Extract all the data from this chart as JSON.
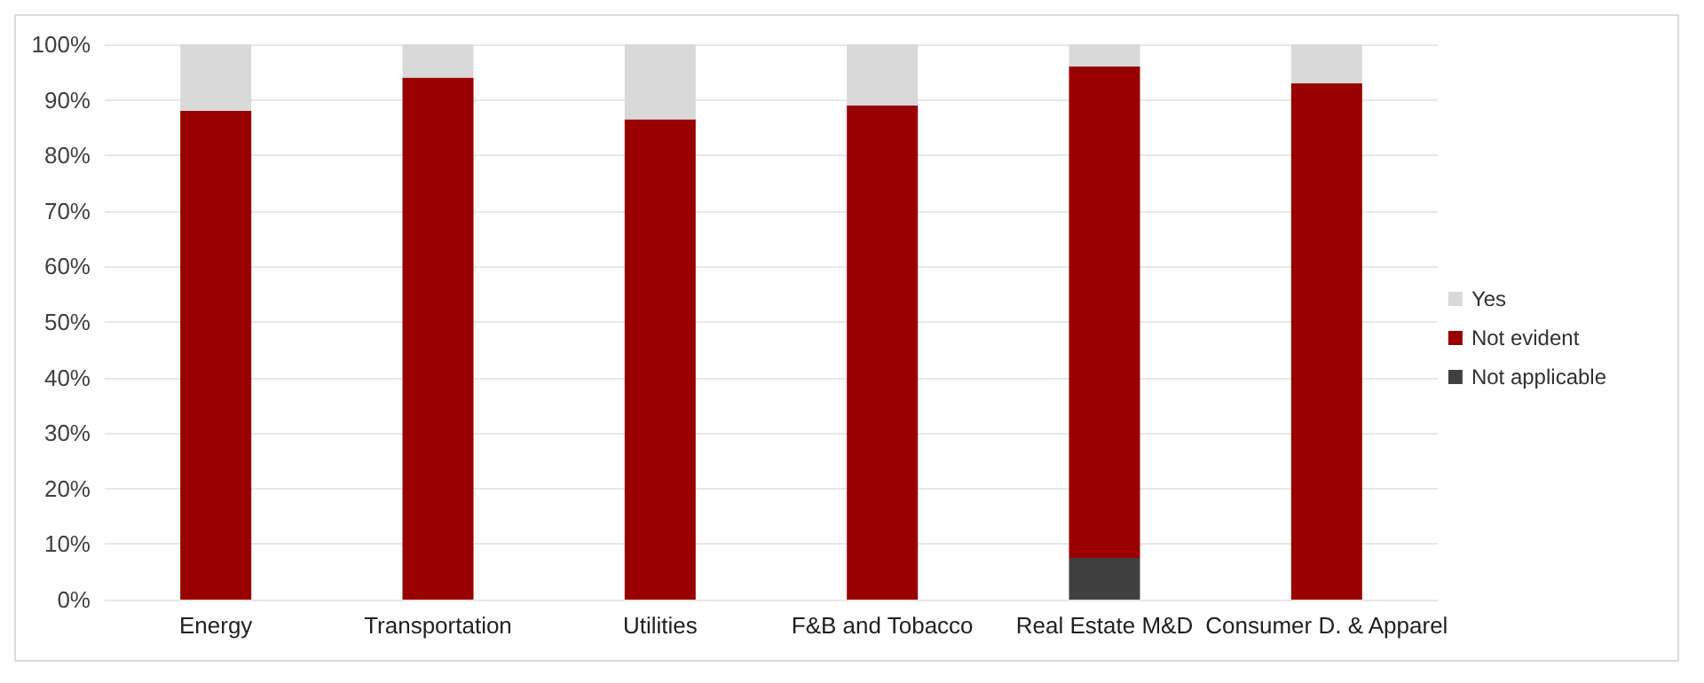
{
  "chart_data": {
    "type": "bar",
    "stacked": true,
    "categories": [
      "Energy",
      "Transportation",
      "Utilities",
      "F&B and Tobacco",
      "Real Estate M&D",
      "Consumer D. & Apparel"
    ],
    "series": [
      {
        "name": "Not applicable",
        "color": "#404040",
        "values": [
          0,
          0,
          0,
          0,
          7.5,
          0
        ]
      },
      {
        "name": "Not evident",
        "color": "#990000",
        "values": [
          88,
          94,
          86.5,
          89,
          88.5,
          93
        ]
      },
      {
        "name": "Yes",
        "color": "#d9d9d9",
        "values": [
          12,
          6,
          13.5,
          11,
          4,
          7
        ]
      }
    ],
    "ylim": [
      0,
      100
    ],
    "yticks": [
      {
        "value": 0,
        "label": "0%"
      },
      {
        "value": 10,
        "label": "10%"
      },
      {
        "value": 20,
        "label": "20%"
      },
      {
        "value": 30,
        "label": "30%"
      },
      {
        "value": 40,
        "label": "40%"
      },
      {
        "value": 50,
        "label": "50%"
      },
      {
        "value": 60,
        "label": "60%"
      },
      {
        "value": 70,
        "label": "70%"
      },
      {
        "value": 80,
        "label": "80%"
      },
      {
        "value": 90,
        "label": "90%"
      },
      {
        "value": 100,
        "label": "100%"
      }
    ],
    "grid": "y",
    "legend": "right"
  }
}
